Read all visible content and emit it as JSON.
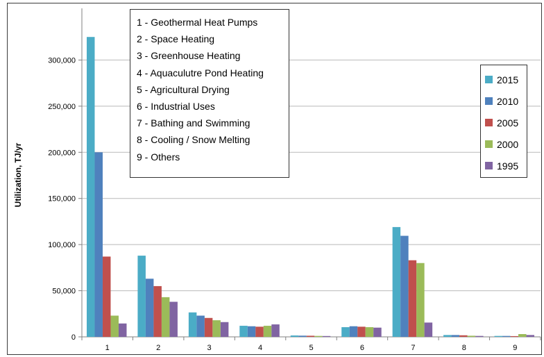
{
  "chart_data": {
    "type": "bar",
    "categories": [
      "1",
      "2",
      "3",
      "4",
      "5",
      "6",
      "7",
      "8",
      "9"
    ],
    "series": [
      {
        "name": "2015",
        "color": "#4BACC6",
        "values": [
          325000,
          88000,
          26500,
          12000,
          1500,
          10500,
          119000,
          2000,
          1000
        ]
      },
      {
        "name": "2010",
        "color": "#4F81BD",
        "values": [
          200000,
          63000,
          23000,
          11500,
          1300,
          11500,
          109500,
          2000,
          1000
        ]
      },
      {
        "name": "2005",
        "color": "#C0504D",
        "values": [
          87000,
          55000,
          20500,
          11000,
          1200,
          11000,
          83000,
          1700,
          800
        ]
      },
      {
        "name": "2000",
        "color": "#9BBB59",
        "values": [
          23000,
          43000,
          18000,
          12000,
          1000,
          10500,
          80000,
          1200,
          3000
        ]
      },
      {
        "name": "1995",
        "color": "#8064A2",
        "values": [
          14500,
          38000,
          16000,
          13500,
          900,
          10000,
          15500,
          1000,
          2000
        ]
      }
    ],
    "category_legend": [
      "1 - Geothermal Heat Pumps",
      "2 - Space Heating",
      "3 - Greenhouse Heating",
      "4 - Aquaculutre Pond Heating",
      "5 - Agricultural Drying",
      "6 - Industrial Uses",
      "7 - Bathing and Swimming",
      "8 - Cooling / Snow Melting",
      "9 - Others"
    ],
    "ylabel": "Utilization, TJ/yr",
    "xlabel": "",
    "ylim": [
      0,
      350000
    ],
    "yticks": [
      0,
      50000,
      100000,
      150000,
      200000,
      250000,
      300000
    ],
    "ytick_labels": [
      "0",
      "50,000",
      "100,000",
      "150,000",
      "200,000",
      "250,000",
      "300,000"
    ],
    "grid": true,
    "legend_position": "right"
  }
}
